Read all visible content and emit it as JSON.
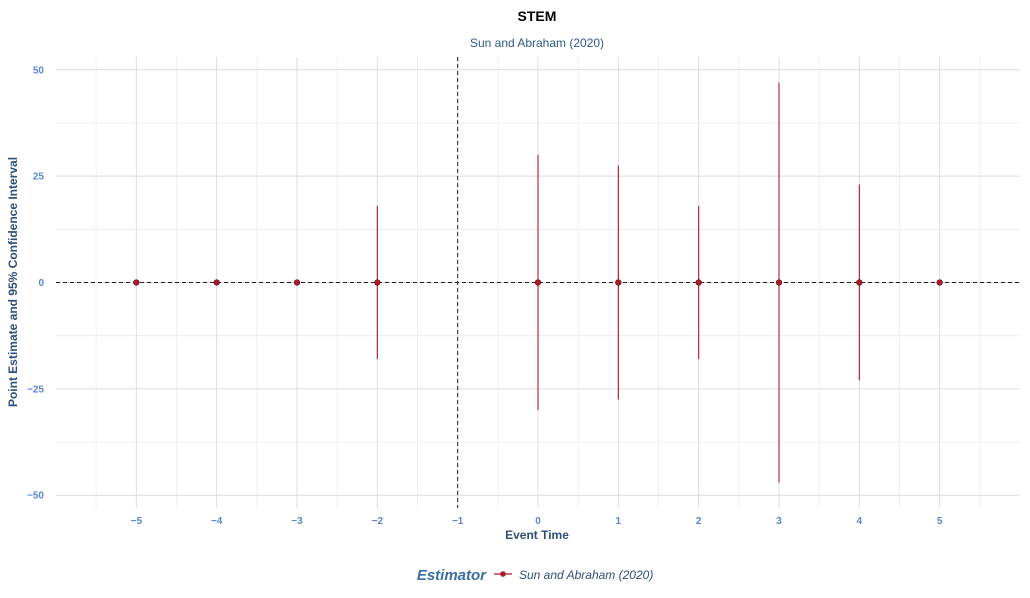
{
  "chart_data": {
    "type": "scatter",
    "title": "STEM",
    "subtitle": "Sun and Abraham (2020)",
    "xlabel": "Event Time",
    "ylabel": "Point Estimate and 95% Confidence Interval",
    "xlim": [
      -6,
      6
    ],
    "ylim": [
      -53,
      53
    ],
    "x_ticks": [
      -5,
      -4,
      -3,
      -2,
      -1,
      0,
      1,
      2,
      3,
      4,
      5
    ],
    "y_ticks": [
      -50,
      -25,
      0,
      25,
      50
    ],
    "y_tick_labels": [
      "−50",
      "−25",
      "0",
      "25",
      "50"
    ],
    "x_tick_labels": [
      "−5",
      "−4",
      "−3",
      "−2",
      "−1",
      "0",
      "1",
      "2",
      "3",
      "4",
      "5"
    ],
    "reference_lines": {
      "vertical_x": -1,
      "horizontal_y": 0,
      "style": "dashed"
    },
    "grid": true,
    "legend": {
      "position": "bottom",
      "title": "Estimator",
      "entries": [
        "Sun and Abraham (2020)"
      ]
    },
    "series": [
      {
        "name": "Sun and Abraham (2020)",
        "color": "#b2182b",
        "points": [
          {
            "x": -5,
            "y": 0,
            "lower": 0,
            "upper": 0
          },
          {
            "x": -4,
            "y": 0,
            "lower": 0,
            "upper": 0
          },
          {
            "x": -3,
            "y": 0,
            "lower": 0,
            "upper": 0
          },
          {
            "x": -2,
            "y": 0,
            "lower": -18,
            "upper": 18
          },
          {
            "x": 0,
            "y": 0,
            "lower": -30,
            "upper": 30
          },
          {
            "x": 1,
            "y": 0,
            "lower": -27.5,
            "upper": 27.5
          },
          {
            "x": 2,
            "y": 0,
            "lower": -18,
            "upper": 18
          },
          {
            "x": 3,
            "y": 0,
            "lower": -47,
            "upper": 47
          },
          {
            "x": 4,
            "y": 0,
            "lower": -23,
            "upper": 23
          },
          {
            "x": 5,
            "y": 0,
            "lower": 0,
            "upper": 0
          }
        ]
      }
    ]
  }
}
